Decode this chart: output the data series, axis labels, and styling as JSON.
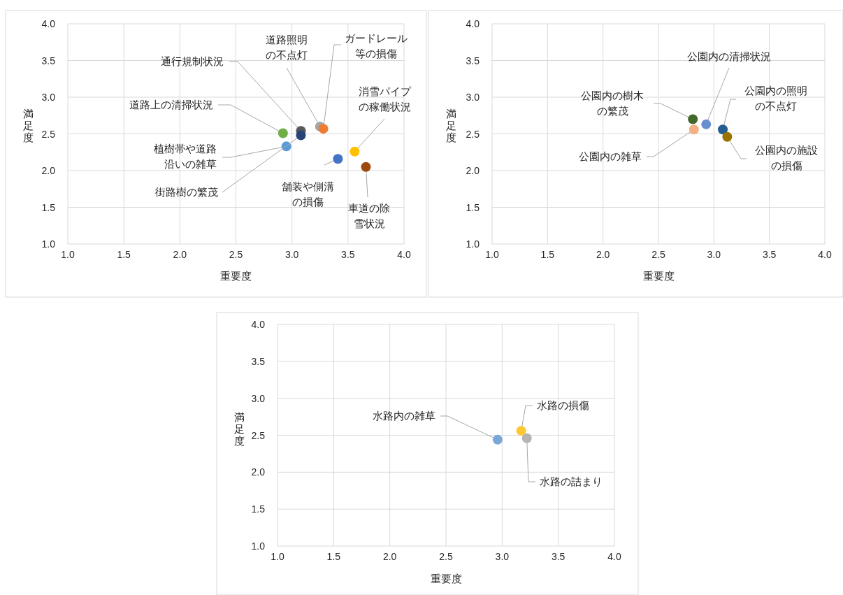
{
  "chart_data": [
    {
      "type": "scatter",
      "xlabel": "重要度",
      "ylabel": "満足度",
      "xlim": [
        1,
        4
      ],
      "ylim": [
        1,
        4
      ],
      "xticks": [
        {
          "value": 1,
          "label": "1.0"
        },
        {
          "value": 1.5,
          "label": "1.5"
        },
        {
          "value": 2,
          "label": "2.0"
        },
        {
          "value": 2.5,
          "label": "2.5"
        },
        {
          "value": 3,
          "label": "3.0"
        },
        {
          "value": 3.5,
          "label": "3.5"
        },
        {
          "value": 4,
          "label": "4.0"
        }
      ],
      "yticks": [
        {
          "value": 1,
          "label": "1.0"
        },
        {
          "value": 1.5,
          "label": "1.5"
        },
        {
          "value": 2,
          "label": "2.0"
        },
        {
          "value": 2.5,
          "label": "2.5"
        },
        {
          "value": 3,
          "label": "3.0"
        },
        {
          "value": 3.5,
          "label": "3.5"
        },
        {
          "value": 4,
          "label": "4.0"
        }
      ],
      "grid": true,
      "marker": "circle",
      "series": [
        {
          "name": "通行規制状況",
          "color": "#595959",
          "x": [
            3.08
          ],
          "values": [
            2.54
          ]
        },
        {
          "name": "道路照明の不点灯",
          "color": "#a5a5a5",
          "x": [
            3.25
          ],
          "values": [
            2.6
          ]
        },
        {
          "name": "ガードレール等の損傷",
          "color": "#ed7d31",
          "x": [
            3.28
          ],
          "values": [
            2.57
          ]
        },
        {
          "name": "道路上の清掃状況",
          "color": "#70ad47",
          "x": [
            2.92
          ],
          "values": [
            2.51
          ]
        },
        {
          "name": "消雪パイプの稼働状況",
          "color": "#ffc000",
          "x": [
            3.56
          ],
          "values": [
            2.26
          ]
        },
        {
          "name": "植樹帯や道路沿いの雑草",
          "color": "#5b9bd5",
          "x": [
            2.95
          ],
          "values": [
            2.33
          ]
        },
        {
          "name": "街路樹の繁茂",
          "color": "#264478",
          "x": [
            3.08
          ],
          "values": [
            2.48
          ]
        },
        {
          "name": "舗装や側溝の損傷",
          "color": "#4472c4",
          "x": [
            3.41
          ],
          "values": [
            2.16
          ]
        },
        {
          "name": "車道の除雪状況",
          "color": "#9e480e",
          "x": [
            3.66
          ],
          "values": [
            2.05
          ]
        }
      ]
    },
    {
      "type": "scatter",
      "xlabel": "重要度",
      "ylabel": "満足度",
      "xlim": [
        1,
        4
      ],
      "ylim": [
        1,
        4
      ],
      "xticks": [
        {
          "value": 1,
          "label": "1.0"
        },
        {
          "value": 1.5,
          "label": "1.5"
        },
        {
          "value": 2,
          "label": "2.0"
        },
        {
          "value": 2.5,
          "label": "2.5"
        },
        {
          "value": 3,
          "label": "3.0"
        },
        {
          "value": 3.5,
          "label": "3.5"
        },
        {
          "value": 4,
          "label": "4.0"
        }
      ],
      "yticks": [
        {
          "value": 1,
          "label": "1.0"
        },
        {
          "value": 1.5,
          "label": "1.5"
        },
        {
          "value": 2,
          "label": "2.0"
        },
        {
          "value": 2.5,
          "label": "2.5"
        },
        {
          "value": 3,
          "label": "3.0"
        },
        {
          "value": 3.5,
          "label": "3.5"
        },
        {
          "value": 4,
          "label": "4.0"
        }
      ],
      "grid": true,
      "marker": "circle",
      "series": [
        {
          "name": "公園内の樹木の繁茂",
          "color": "#43682b",
          "x": [
            2.81
          ],
          "values": [
            2.7
          ]
        },
        {
          "name": "公園内の雑草",
          "color": "#f4b183",
          "x": [
            2.82
          ],
          "values": [
            2.56
          ]
        },
        {
          "name": "公園内の清掃状況",
          "color": "#698ed0",
          "x": [
            2.93
          ],
          "values": [
            2.63
          ]
        },
        {
          "name": "公園内の照明の不点灯",
          "color": "#255e91",
          "x": [
            3.08
          ],
          "values": [
            2.56
          ]
        },
        {
          "name": "公園内の施設の損傷",
          "color": "#997300",
          "x": [
            3.12
          ],
          "values": [
            2.46
          ]
        }
      ]
    },
    {
      "type": "scatter",
      "xlabel": "重要度",
      "ylabel": "満足度",
      "xlim": [
        1,
        4
      ],
      "ylim": [
        1,
        4
      ],
      "xticks": [
        {
          "value": 1,
          "label": "1.0"
        },
        {
          "value": 1.5,
          "label": "1.5"
        },
        {
          "value": 2,
          "label": "2.0"
        },
        {
          "value": 2.5,
          "label": "2.5"
        },
        {
          "value": 3,
          "label": "3.0"
        },
        {
          "value": 3.5,
          "label": "3.5"
        },
        {
          "value": 4,
          "label": "4.0"
        }
      ],
      "yticks": [
        {
          "value": 1,
          "label": "1.0"
        },
        {
          "value": 1.5,
          "label": "1.5"
        },
        {
          "value": 2,
          "label": "2.0"
        },
        {
          "value": 2.5,
          "label": "2.5"
        },
        {
          "value": 3,
          "label": "3.0"
        },
        {
          "value": 3.5,
          "label": "3.5"
        },
        {
          "value": 4,
          "label": "4.0"
        }
      ],
      "grid": true,
      "marker": "circle",
      "series": [
        {
          "name": "水路内の雑草",
          "color": "#7aa7d9",
          "x": [
            2.96
          ],
          "values": [
            2.44
          ]
        },
        {
          "name": "水路の損傷",
          "color": "#ffc832",
          "x": [
            3.17
          ],
          "values": [
            2.56
          ]
        },
        {
          "name": "水路の詰まり",
          "color": "#b4b4b4",
          "x": [
            3.22
          ],
          "values": [
            2.46
          ]
        }
      ]
    }
  ]
}
